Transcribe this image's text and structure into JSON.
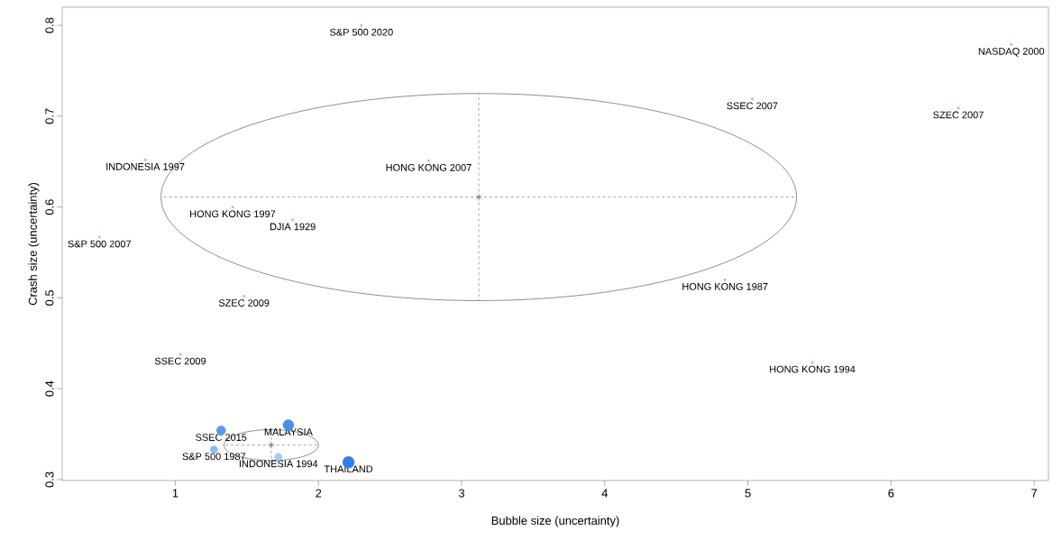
{
  "chart_data": {
    "type": "scatter",
    "xlabel": "Bubble size (uncertainty)",
    "ylabel": "Crash size (uncertainty)",
    "xlim": [
      0.21,
      7.1
    ],
    "ylim": [
      0.299,
      0.82
    ],
    "xticks": [
      1,
      2,
      3,
      4,
      5,
      6,
      7
    ],
    "yticks": [
      0.3,
      0.4,
      0.5,
      0.6,
      0.7,
      0.8
    ],
    "series": [
      {
        "marker": "circle",
        "color": "#f4a0a0",
        "x": [
          2.3,
          6.84,
          5.03,
          6.47,
          0.79,
          2.77,
          1.4,
          1.82,
          0.47,
          1.48,
          1.035,
          4.84,
          5.45
        ],
        "values": [
          0.8,
          0.779,
          0.719,
          0.709,
          0.652,
          0.651,
          0.6,
          0.586,
          0.567,
          0.502,
          0.438,
          0.52,
          0.429
        ]
      },
      {
        "type": "bubble",
        "colors": [
          "#5b9be6",
          "#4a90e2",
          "#8fbaf0",
          "#a8c8f2",
          "#2f80e8"
        ],
        "x": [
          1.32,
          1.79,
          1.27,
          1.72,
          2.21
        ],
        "values": [
          0.354,
          0.36,
          0.333,
          0.325,
          0.319
        ],
        "sizes": [
          0.62,
          0.86,
          0.41,
          0.41,
          1
        ]
      },
      {
        "type": "scatter",
        "marker": "cross",
        "line_style": "dashed",
        "color": "#444444",
        "x": [
          3.12,
          1.67
        ],
        "values": [
          0.611,
          0.338
        ],
        "xerrors": [
          2.22,
          0.33
        ],
        "errors": [
          0.114,
          0.017
        ]
      }
    ],
    "annotations": [
      {
        "text": "S&P 500 2020",
        "x": 2.3,
        "y": 0.8
      },
      {
        "text": "NASDAQ 2000",
        "x": 6.84,
        "y": 0.779
      },
      {
        "text": "SSEC 2007",
        "x": 5.03,
        "y": 0.719
      },
      {
        "text": "SZEC 2007",
        "x": 6.47,
        "y": 0.709
      },
      {
        "text": "INDONESIA 1997",
        "x": 0.79,
        "y": 0.652
      },
      {
        "text": "HONG KONG 2007",
        "x": 2.77,
        "y": 0.651
      },
      {
        "text": "HONG KONG 1997",
        "x": 1.4,
        "y": 0.6
      },
      {
        "text": "DJIA 1929",
        "x": 1.82,
        "y": 0.586
      },
      {
        "text": "S&P 500 2007",
        "x": 0.47,
        "y": 0.567
      },
      {
        "text": "SZEC 2009",
        "x": 1.48,
        "y": 0.502
      },
      {
        "text": "SSEC 2009",
        "x": 1.035,
        "y": 0.438
      },
      {
        "text": "HONG KONG 1987",
        "x": 4.84,
        "y": 0.52
      },
      {
        "text": "HONG KONG 1994",
        "x": 5.45,
        "y": 0.429
      },
      {
        "text": "SSEC 2015",
        "x": 1.32,
        "y": 0.354
      },
      {
        "text": "MALAYSIA",
        "x": 1.79,
        "y": 0.36
      },
      {
        "text": "S&P 500 1987",
        "x": 1.27,
        "y": 0.333
      },
      {
        "text": "INDONESIA 1994",
        "x": 1.72,
        "y": 0.325
      },
      {
        "text": "THAILAND",
        "x": 2.21,
        "y": 0.319
      }
    ]
  }
}
